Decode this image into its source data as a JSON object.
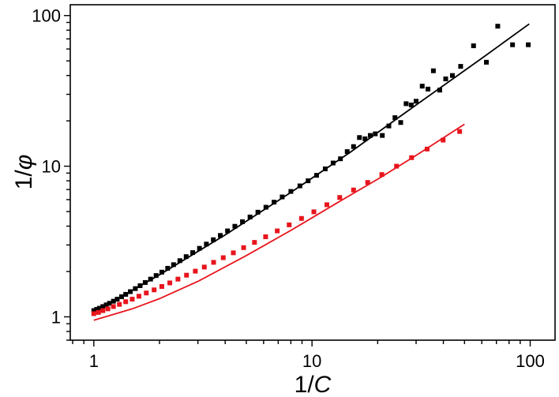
{
  "chart_data": {
    "type": "scatter",
    "xlabel_prefix": "1/",
    "xlabel_var": "C",
    "ylabel_prefix": "1/",
    "ylabel_var": "φ",
    "xscale": "log",
    "yscale": "log",
    "xlim": [
      0.78,
      130
    ],
    "ylim": [
      0.7,
      118
    ],
    "x_ticks": [
      1,
      10,
      100
    ],
    "x_tick_labels": [
      "1",
      "10",
      "100"
    ],
    "y_ticks": [
      1,
      10,
      100
    ],
    "y_tick_labels": [
      "1",
      "10",
      "100"
    ],
    "grid": false,
    "legend": "none",
    "series": [
      {
        "color": "#000000",
        "marker": "square",
        "points": [
          [
            1.0,
            1.1
          ],
          [
            1.03,
            1.12
          ],
          [
            1.06,
            1.14
          ],
          [
            1.1,
            1.17
          ],
          [
            1.14,
            1.2
          ],
          [
            1.18,
            1.23
          ],
          [
            1.23,
            1.27
          ],
          [
            1.28,
            1.31
          ],
          [
            1.34,
            1.36
          ],
          [
            1.4,
            1.41
          ],
          [
            1.47,
            1.47
          ],
          [
            1.55,
            1.54
          ],
          [
            1.63,
            1.61
          ],
          [
            1.72,
            1.69
          ],
          [
            1.82,
            1.78
          ],
          [
            1.93,
            1.88
          ],
          [
            2.05,
            1.98
          ],
          [
            2.18,
            2.1
          ],
          [
            2.32,
            2.22
          ],
          [
            2.48,
            2.36
          ],
          [
            2.65,
            2.51
          ],
          [
            2.84,
            2.67
          ],
          [
            3.05,
            2.85
          ],
          [
            3.28,
            3.04
          ],
          [
            3.53,
            3.25
          ],
          [
            3.8,
            3.47
          ],
          [
            4.1,
            3.72
          ],
          [
            4.43,
            3.99
          ],
          [
            4.8,
            4.28
          ],
          [
            5.2,
            4.6
          ],
          [
            5.65,
            4.95
          ],
          [
            6.15,
            5.34
          ],
          [
            6.7,
            5.77
          ],
          [
            7.3,
            6.25
          ],
          [
            8.0,
            6.8
          ],
          [
            8.8,
            7.4
          ],
          [
            9.6,
            8.0
          ],
          [
            10.5,
            8.7
          ],
          [
            11.5,
            9.6
          ],
          [
            12.5,
            10.5
          ],
          [
            13.5,
            11.2
          ],
          [
            14.5,
            12.5
          ],
          [
            15.5,
            13.5
          ],
          [
            16.5,
            15.5
          ],
          [
            17.5,
            15.2
          ],
          [
            18.5,
            16.0
          ],
          [
            19.5,
            16.4
          ],
          [
            21.0,
            16.0
          ],
          [
            22.5,
            18.5
          ],
          [
            24.0,
            21.0
          ],
          [
            25.5,
            19.5
          ],
          [
            27.0,
            26.0
          ],
          [
            28.5,
            25.5
          ],
          [
            30.0,
            27.0
          ],
          [
            32.0,
            34.0
          ],
          [
            34.0,
            32.5
          ],
          [
            36.0,
            43.0
          ],
          [
            38.5,
            32.0
          ],
          [
            41.0,
            38.0
          ],
          [
            44.0,
            40.0
          ],
          [
            48.0,
            46.0
          ],
          [
            55.0,
            63.0
          ],
          [
            63.0,
            49.0
          ],
          [
            71.0,
            85.0
          ],
          [
            83.0,
            64.0
          ],
          [
            98.0,
            64.0
          ]
        ],
        "fit_line": [
          [
            1.0,
            1.07
          ],
          [
            2.0,
            1.9
          ],
          [
            4.0,
            3.5
          ],
          [
            8.0,
            6.7
          ],
          [
            15.0,
            12.4
          ],
          [
            30.0,
            25.5
          ],
          [
            60.0,
            52.0
          ],
          [
            99.0,
            88.0
          ]
        ]
      },
      {
        "color": "#e8141c",
        "marker": "square",
        "points": [
          [
            1.0,
            1.05
          ],
          [
            1.05,
            1.07
          ],
          [
            1.1,
            1.1
          ],
          [
            1.16,
            1.13
          ],
          [
            1.23,
            1.17
          ],
          [
            1.31,
            1.21
          ],
          [
            1.4,
            1.26
          ],
          [
            1.5,
            1.31
          ],
          [
            1.61,
            1.37
          ],
          [
            1.74,
            1.44
          ],
          [
            1.89,
            1.51
          ],
          [
            2.05,
            1.59
          ],
          [
            2.23,
            1.68
          ],
          [
            2.43,
            1.78
          ],
          [
            2.66,
            1.89
          ],
          [
            2.92,
            2.01
          ],
          [
            3.21,
            2.14
          ],
          [
            3.54,
            2.3
          ],
          [
            3.92,
            2.47
          ],
          [
            4.36,
            2.66
          ],
          [
            4.86,
            2.88
          ],
          [
            5.45,
            3.12
          ],
          [
            6.13,
            3.4
          ],
          [
            6.93,
            3.72
          ],
          [
            7.86,
            4.08
          ],
          [
            8.95,
            4.5
          ],
          [
            10.2,
            4.98
          ],
          [
            11.7,
            5.55
          ],
          [
            13.4,
            6.2
          ],
          [
            15.5,
            6.95
          ],
          [
            18.0,
            7.8
          ],
          [
            20.9,
            8.8
          ],
          [
            24.4,
            10.0
          ],
          [
            28.6,
            11.4
          ],
          [
            33.7,
            13.0
          ],
          [
            39.9,
            14.9
          ],
          [
            47.5,
            17.0
          ]
        ],
        "fit_line": [
          [
            1.0,
            0.95
          ],
          [
            1.5,
            1.13
          ],
          [
            2.0,
            1.32
          ],
          [
            3.0,
            1.72
          ],
          [
            5.0,
            2.55
          ],
          [
            8.0,
            3.75
          ],
          [
            13.0,
            5.7
          ],
          [
            20.0,
            8.2
          ],
          [
            30.0,
            11.8
          ],
          [
            50.0,
            19.0
          ]
        ]
      }
    ]
  }
}
